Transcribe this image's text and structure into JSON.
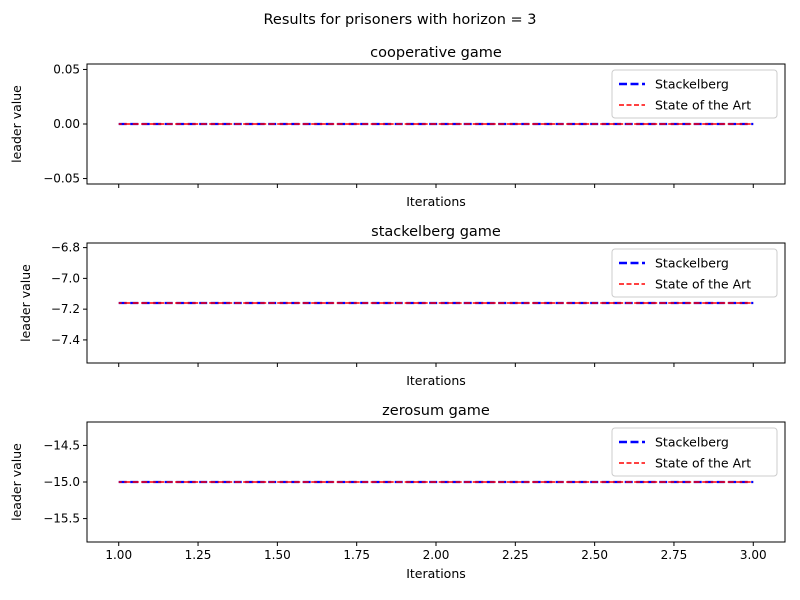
{
  "figure_title": "Results for prisoners with horizon = 3",
  "chart_data": [
    {
      "type": "line",
      "title": "cooperative game",
      "xlabel": "Iterations",
      "ylabel": "leader value",
      "xlim": [
        0.9,
        3.1
      ],
      "ylim": [
        -0.055,
        0.055
      ],
      "yticks": [
        -0.05,
        0.0,
        0.05
      ],
      "ytick_labels": [
        "−0.05",
        "0.00",
        "0.05"
      ],
      "show_xtick_labels": false,
      "legend": "top-right",
      "series": [
        {
          "name": "Stackelberg",
          "color": "#0000ff",
          "style": "dashed",
          "x": [
            1,
            2,
            3
          ],
          "values": [
            0.0,
            0.0,
            0.0
          ]
        },
        {
          "name": "State of the Art",
          "color": "#ff0000",
          "style": "dashed",
          "x": [
            1,
            2,
            3
          ],
          "values": [
            0.0,
            0.0,
            0.0
          ]
        }
      ]
    },
    {
      "type": "line",
      "title": "stackelberg game",
      "xlabel": "Iterations",
      "ylabel": "leader value",
      "xlim": [
        0.9,
        3.1
      ],
      "ylim": [
        -7.55,
        -6.77
      ],
      "yticks": [
        -7.4,
        -7.2,
        -7.0,
        -6.8
      ],
      "ytick_labels": [
        "−7.4",
        "−7.2",
        "−7.0",
        "−6.8"
      ],
      "show_xtick_labels": false,
      "legend": "top-right",
      "series": [
        {
          "name": "Stackelberg",
          "color": "#0000ff",
          "style": "dashed",
          "x": [
            1,
            2,
            3
          ],
          "values": [
            -7.16,
            -7.16,
            -7.16
          ]
        },
        {
          "name": "State of the Art",
          "color": "#ff0000",
          "style": "dashed",
          "x": [
            1,
            2,
            3
          ],
          "values": [
            -7.16,
            -7.16,
            -7.16
          ]
        }
      ]
    },
    {
      "type": "line",
      "title": "zerosum game",
      "xlabel": "Iterations",
      "ylabel": "leader value",
      "xlim": [
        0.9,
        3.1
      ],
      "ylim": [
        -15.82,
        -14.18
      ],
      "yticks": [
        -15.5,
        -15.0,
        -14.5
      ],
      "ytick_labels": [
        "−15.5",
        "−15.0",
        "−14.5"
      ],
      "show_xtick_labels": true,
      "xticks": [
        1.0,
        1.25,
        1.5,
        1.75,
        2.0,
        2.25,
        2.5,
        2.75,
        3.0
      ],
      "xtick_labels": [
        "1.00",
        "1.25",
        "1.50",
        "1.75",
        "2.00",
        "2.25",
        "2.50",
        "2.75",
        "3.00"
      ],
      "legend": "top-right",
      "series": [
        {
          "name": "Stackelberg",
          "color": "#0000ff",
          "style": "dashed",
          "x": [
            1,
            2,
            3
          ],
          "values": [
            -15.0,
            -15.0,
            -15.0
          ]
        },
        {
          "name": "State of the Art",
          "color": "#ff0000",
          "style": "dashed",
          "x": [
            1,
            2,
            3
          ],
          "values": [
            -15.0,
            -15.0,
            -15.0
          ]
        }
      ]
    }
  ]
}
